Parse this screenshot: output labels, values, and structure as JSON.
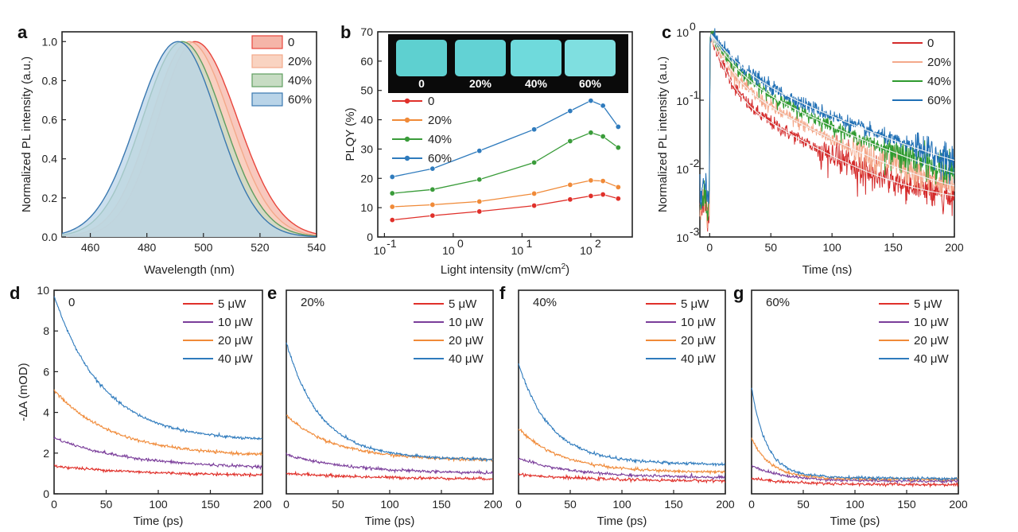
{
  "figure": {
    "panel_letters": [
      "a",
      "b",
      "c",
      "d",
      "e",
      "f",
      "g"
    ]
  },
  "chart_data": [
    {
      "panel": "a",
      "type": "area",
      "xlabel": "Wavelength (nm)",
      "ylabel": "Normalized PL intensity (a.u.)",
      "xlim": [
        450,
        540
      ],
      "ylim": [
        0,
        1.05
      ],
      "xticks": [
        460,
        480,
        500,
        520,
        540
      ],
      "yticks": [
        0.0,
        0.2,
        0.4,
        0.6,
        0.8,
        1.0
      ],
      "ytick_labels": [
        "0.0",
        "0.2",
        "0.4",
        "0.6",
        "0.8",
        "1.0"
      ],
      "series": [
        {
          "name": "0",
          "peak": 497,
          "sigma_left": 13,
          "sigma_right": 15,
          "color": "#e8453c",
          "fill": "#f5b5a8"
        },
        {
          "name": "20%",
          "peak": 495,
          "sigma_left": 13.5,
          "sigma_right": 14.5,
          "color": "#f3a98b",
          "fill": "#f9d3c1"
        },
        {
          "name": "40%",
          "peak": 492.5,
          "sigma_left": 14,
          "sigma_right": 14.5,
          "color": "#5f9e5f",
          "fill": "#c7dcc3"
        },
        {
          "name": "60%",
          "peak": 491,
          "sigma_left": 14.5,
          "sigma_right": 14,
          "color": "#3a78b0",
          "fill": "#b9d4e8"
        }
      ],
      "legend": [
        "0",
        "20%",
        "40%",
        "60%"
      ],
      "legend_position": "top-right"
    },
    {
      "panel": "b",
      "type": "line",
      "xlabel": "Light intensity (mW/cm",
      "xlabel_sup": "2",
      "xlabel_end": ")",
      "ylabel": "PLQY (%)",
      "xscale": "log",
      "xlim": [
        0.08,
        400
      ],
      "ylim": [
        0,
        70
      ],
      "xticks": [
        0.1,
        1,
        10,
        100
      ],
      "xtick_base": "10",
      "xtick_exponents": [
        "-1",
        "0",
        "1",
        "2"
      ],
      "yticks": [
        0,
        10,
        20,
        30,
        40,
        50,
        60,
        70
      ],
      "x": [
        0.13,
        0.5,
        2.4,
        15,
        50,
        100,
        150,
        250
      ],
      "series": [
        {
          "name": "0",
          "values": [
            5.8,
            7.3,
            8.7,
            10.7,
            12.8,
            14,
            14.5,
            13.1
          ],
          "color": "#e0302a"
        },
        {
          "name": "20%",
          "values": [
            10.3,
            11,
            12.1,
            14.8,
            17.8,
            19.3,
            19.1,
            17
          ],
          "color": "#f08a38"
        },
        {
          "name": "40%",
          "values": [
            14.9,
            16.2,
            19.6,
            25.4,
            32.7,
            35.6,
            34.3,
            30.5
          ],
          "color": "#3a9c3a"
        },
        {
          "name": "60%",
          "values": [
            20.5,
            23.3,
            29.4,
            36.7,
            43,
            46.5,
            44.8,
            37.6
          ],
          "color": "#2f7bbd"
        }
      ],
      "legend": [
        "0",
        "20%",
        "40%",
        "60%"
      ],
      "legend_position": "center-left",
      "inset_labels": [
        "0",
        "20%",
        "40%",
        "60%"
      ]
    },
    {
      "panel": "c",
      "type": "line",
      "xlabel": "Time (ns)",
      "ylabel": "Normalized PL intensity (a.u.)",
      "yscale": "log",
      "xlim": [
        -8,
        200
      ],
      "ylim": [
        0.001,
        1
      ],
      "xticks": [
        0,
        50,
        100,
        150,
        200
      ],
      "ytick_base": "10",
      "ytick_exponents": [
        "-3",
        "-2",
        "-1",
        "0"
      ],
      "series": [
        {
          "name": "0",
          "tau1": 8,
          "tau2": 40,
          "a1": 0.8,
          "a2": 0.15,
          "bg": 0.003,
          "color": "#d42a2a"
        },
        {
          "name": "20%",
          "tau1": 10,
          "tau2": 45,
          "a1": 0.75,
          "a2": 0.22,
          "bg": 0.003,
          "color": "#f4a88a"
        },
        {
          "name": "40%",
          "tau1": 12,
          "tau2": 50,
          "a1": 0.7,
          "a2": 0.28,
          "bg": 0.0035,
          "color": "#2e9a2e"
        },
        {
          "name": "60%",
          "tau1": 14,
          "tau2": 55,
          "a1": 0.65,
          "a2": 0.33,
          "bg": 0.0045,
          "color": "#1f6fb5"
        }
      ],
      "legend": [
        "0",
        "20%",
        "40%",
        "60%"
      ],
      "legend_position": "top-right"
    },
    {
      "panel": "d",
      "type": "line",
      "title": "0",
      "xlabel": "Time (ps)",
      "ylabel": "-ΔA (mOD)",
      "xlim": [
        0,
        200
      ],
      "ylim": [
        0,
        10
      ],
      "xticks": [
        0,
        50,
        100,
        150,
        200
      ],
      "yticks": [
        0,
        2,
        4,
        6,
        8,
        10
      ],
      "series": [
        {
          "name": "5 μW",
          "start": 1.35,
          "end": 0.88,
          "tau": 90,
          "color": "#e0302a"
        },
        {
          "name": "10 μW",
          "start": 2.7,
          "end": 1.25,
          "tau": 70,
          "color": "#7a3d9a"
        },
        {
          "name": "20 μW",
          "start": 4.95,
          "end": 1.85,
          "tau": 55,
          "color": "#f08a38"
        },
        {
          "name": "40 μW",
          "start": 9.4,
          "end": 2.6,
          "tau": 45,
          "color": "#2f7bbd"
        }
      ],
      "legend": [
        "5 μW",
        "10 μW",
        "20 μW",
        "40 μW"
      ],
      "legend_position": "top-right"
    },
    {
      "panel": "e",
      "type": "line",
      "title": "20%",
      "xlabel": "Time (ps)",
      "xlim": [
        0,
        200
      ],
      "ylim": [
        0,
        10
      ],
      "xticks": [
        0,
        50,
        100,
        150,
        200
      ],
      "series": [
        {
          "name": "5 μW",
          "start": 1.0,
          "end": 0.72,
          "tau": 80,
          "color": "#e0302a"
        },
        {
          "name": "10 μW",
          "start": 1.9,
          "end": 1.0,
          "tau": 60,
          "color": "#7a3d9a"
        },
        {
          "name": "20 μW",
          "start": 3.75,
          "end": 1.65,
          "tau": 45,
          "color": "#f08a38"
        },
        {
          "name": "40 μW",
          "start": 7.1,
          "end": 1.68,
          "tau": 32,
          "color": "#2f7bbd"
        }
      ],
      "legend": [
        "5 μW",
        "10 μW",
        "20 μW",
        "40 μW"
      ],
      "legend_position": "top-right"
    },
    {
      "panel": "f",
      "type": "line",
      "title": "40%",
      "xlabel": "Time (ps)",
      "xlim": [
        0,
        200
      ],
      "ylim": [
        0,
        10
      ],
      "xticks": [
        0,
        50,
        100,
        150,
        200
      ],
      "series": [
        {
          "name": "5 μW",
          "start": 0.95,
          "end": 0.62,
          "tau": 70,
          "color": "#e0302a"
        },
        {
          "name": "10 μW",
          "start": 1.7,
          "end": 0.8,
          "tau": 50,
          "color": "#7a3d9a"
        },
        {
          "name": "20 μW",
          "start": 3.1,
          "end": 1.05,
          "tau": 40,
          "color": "#f08a38"
        },
        {
          "name": "40 μW",
          "start": 6.1,
          "end": 1.45,
          "tau": 30,
          "color": "#2f7bbd"
        }
      ],
      "legend": [
        "5 μW",
        "10 μW",
        "20 μW",
        "40 μW"
      ],
      "legend_position": "top-right"
    },
    {
      "panel": "g",
      "type": "line",
      "title": "60%",
      "xlabel": "Time (ps)",
      "xlim": [
        0,
        200
      ],
      "ylim": [
        0,
        10
      ],
      "xticks": [
        0,
        50,
        100,
        150,
        200
      ],
      "series": [
        {
          "name": "5 μW",
          "start": 0.75,
          "end": 0.45,
          "tau": 40,
          "color": "#e0302a"
        },
        {
          "name": "10 μW",
          "start": 1.35,
          "end": 0.62,
          "tau": 30,
          "color": "#7a3d9a"
        },
        {
          "name": "20 μW",
          "start": 2.6,
          "end": 0.7,
          "tau": 18,
          "color": "#f08a38"
        },
        {
          "name": "40 μW",
          "start": 4.9,
          "end": 0.75,
          "tau": 14,
          "color": "#2f7bbd"
        }
      ],
      "legend": [
        "5 μW",
        "10 μW",
        "20 μW",
        "40 μW"
      ],
      "legend_position": "top-right"
    }
  ]
}
